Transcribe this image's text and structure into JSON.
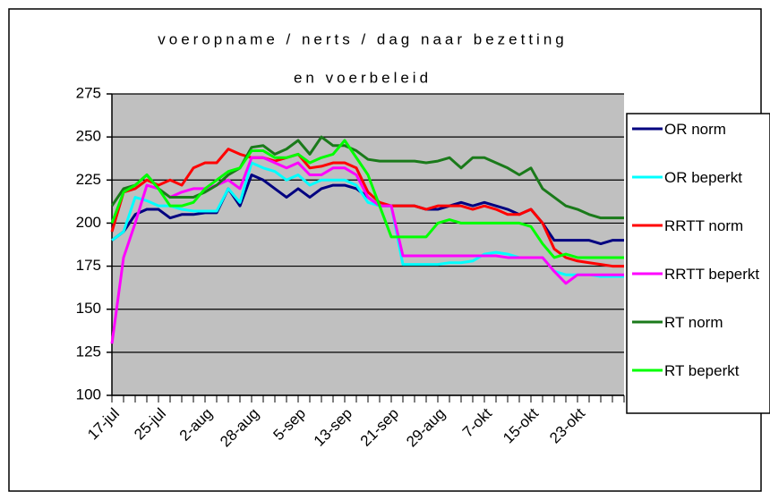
{
  "chart_data": {
    "type": "line",
    "title": [
      "voeropname / nerts / dag naar bezetting",
      "en voerbeleid"
    ],
    "categories": [
      "17-jul",
      null,
      null,
      null,
      "25-jul",
      null,
      null,
      null,
      "2-aug",
      null,
      null,
      null,
      "28-aug",
      null,
      null,
      null,
      "5-sep",
      null,
      null,
      null,
      "13-sep",
      null,
      null,
      null,
      "21-sep",
      null,
      null,
      null,
      "29-aug",
      null,
      null,
      null,
      "7-okt",
      null,
      null,
      null,
      "15-okt",
      null,
      null,
      null,
      "23-okt",
      null,
      null,
      null,
      null
    ],
    "ylim": [
      100,
      275
    ],
    "yticks": [
      100,
      125,
      150,
      175,
      200,
      225,
      250,
      275
    ],
    "grid": true,
    "legend": "right",
    "series": [
      {
        "name": "OR norm",
        "color": "#000080",
        "values": [
          190,
          195,
          205,
          208,
          208,
          203,
          205,
          205,
          206,
          206,
          220,
          210,
          228,
          225,
          220,
          215,
          220,
          215,
          220,
          222,
          222,
          220,
          215,
          210,
          210,
          210,
          210,
          208,
          208,
          210,
          212,
          210,
          212,
          210,
          208,
          205,
          208,
          200,
          190,
          190,
          190,
          190,
          188,
          190,
          190
        ]
      },
      {
        "name": "OR beperkt",
        "color": "#00ffff",
        "values": [
          190,
          195,
          215,
          213,
          210,
          210,
          208,
          207,
          207,
          207,
          220,
          212,
          235,
          232,
          230,
          225,
          228,
          222,
          225,
          225,
          225,
          222,
          212,
          210,
          210,
          176,
          176,
          176,
          176,
          177,
          177,
          178,
          182,
          183,
          182,
          180,
          180,
          180,
          172,
          170,
          170,
          170,
          169,
          169,
          169
        ]
      },
      {
        "name": "RRTT norm",
        "color": "#ff0000",
        "values": [
          195,
          218,
          220,
          225,
          222,
          225,
          222,
          232,
          235,
          235,
          243,
          240,
          238,
          238,
          236,
          238,
          240,
          232,
          233,
          235,
          235,
          232,
          218,
          212,
          210,
          210,
          210,
          208,
          210,
          210,
          210,
          208,
          210,
          208,
          205,
          205,
          208,
          200,
          185,
          180,
          178,
          177,
          176,
          175,
          175
        ]
      },
      {
        "name": "RRTT beperkt",
        "color": "#ff00ff",
        "values": [
          130,
          180,
          200,
          222,
          220,
          215,
          218,
          220,
          220,
          222,
          225,
          220,
          238,
          238,
          235,
          232,
          235,
          228,
          228,
          232,
          232,
          228,
          215,
          210,
          210,
          181,
          181,
          181,
          181,
          181,
          181,
          181,
          181,
          181,
          180,
          180,
          180,
          180,
          172,
          165,
          170,
          170,
          170,
          170,
          170
        ]
      },
      {
        "name": "RT norm",
        "color": "#1a7a1a",
        "values": [
          210,
          220,
          222,
          228,
          220,
          215,
          215,
          215,
          218,
          222,
          228,
          232,
          244,
          245,
          240,
          243,
          248,
          240,
          250,
          245,
          245,
          242,
          237,
          236,
          236,
          236,
          236,
          235,
          236,
          238,
          232,
          238,
          238,
          235,
          232,
          228,
          232,
          220,
          215,
          210,
          208,
          205,
          203,
          203,
          203
        ]
      },
      {
        "name": "RT beperkt",
        "color": "#00ff00",
        "values": [
          200,
          218,
          222,
          228,
          220,
          210,
          210,
          212,
          220,
          225,
          230,
          232,
          242,
          242,
          238,
          238,
          240,
          235,
          238,
          240,
          248,
          238,
          228,
          210,
          192,
          192,
          192,
          192,
          200,
          202,
          200,
          200,
          200,
          200,
          200,
          200,
          198,
          188,
          180,
          182,
          180,
          180,
          180,
          180,
          180
        ]
      }
    ]
  }
}
